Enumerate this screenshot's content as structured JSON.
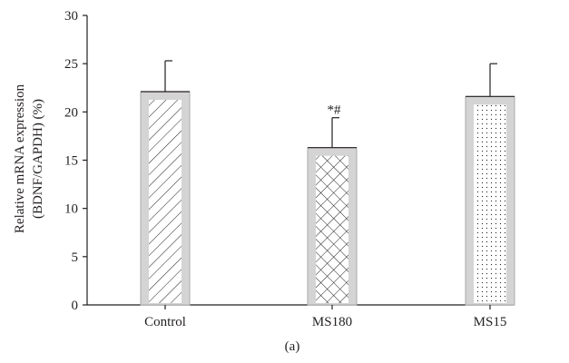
{
  "chart_data": {
    "type": "bar",
    "categories": [
      "Control",
      "MS180",
      "MS15"
    ],
    "values": [
      22.1,
      16.3,
      21.6
    ],
    "errors": [
      3.2,
      3.1,
      3.4
    ],
    "annotations": [
      "",
      "*#",
      ""
    ],
    "patterns": [
      "diagonal-lines",
      "crosshatch",
      "dots"
    ],
    "ylabel_line1": "Relative mRNA expression",
    "ylabel_line2": "(BDNF/GAPDH) (%)",
    "xlabel": "",
    "title": "",
    "subfigure_label": "(a)",
    "ylim": [
      0,
      30
    ],
    "yticks": [
      0,
      5,
      10,
      15,
      20,
      25,
      30
    ],
    "grid": false,
    "legend": "none",
    "colors": {
      "bar_border": "#aaaaaa",
      "bar_fill": "#d4d4d4",
      "pattern": "#231f20",
      "axis": "#231f20"
    }
  }
}
